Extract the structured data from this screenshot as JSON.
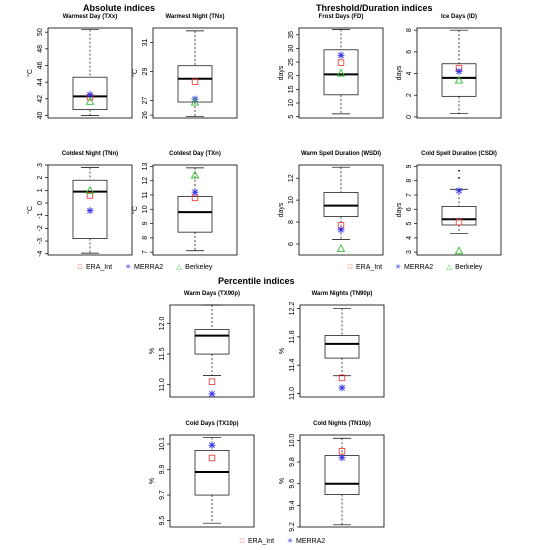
{
  "sections": {
    "absolute": "Absolute indices",
    "threshold": "Threshold/Duration indices",
    "percentile": "Percentile indices"
  },
  "legends": {
    "top": [
      {
        "label": "ERA_Int",
        "symbol": "□",
        "color": "#e8302a"
      },
      {
        "label": "MERRA2",
        "symbol": "✳",
        "color": "#2f2fe6"
      },
      {
        "label": "Berkeley",
        "symbol": "△",
        "color": "#2fbf2f"
      }
    ],
    "bottom": [
      {
        "label": "ERA_Int",
        "symbol": "□",
        "color": "#e8302a"
      },
      {
        "label": "MERRA2",
        "symbol": "✳",
        "color": "#2f2fe6"
      }
    ]
  },
  "colors": {
    "era": "#e8302a",
    "merra": "#2f2fe6",
    "berkeley": "#2fbf2f"
  },
  "chart_data": [
    {
      "id": "txx",
      "type": "box",
      "title": "Warmest Day (TXx)",
      "ylabel": "°C",
      "ylim": [
        39.7,
        50.5
      ],
      "ticks": [
        40,
        42,
        44,
        46,
        48,
        50
      ],
      "box": {
        "min": 40.0,
        "q1": 40.7,
        "median": 42.3,
        "q3": 44.6,
        "max": 50.3
      },
      "outliers": [],
      "era": 42.2,
      "merra": 42.5,
      "berkeley": 41.7
    },
    {
      "id": "tnx",
      "type": "box",
      "title": "Warmest Night (TNx)",
      "ylabel": "°C",
      "ylim": [
        25.8,
        32.0
      ],
      "ticks": [
        26,
        27,
        29,
        31
      ],
      "box": {
        "min": 25.9,
        "q1": 26.9,
        "median": 28.5,
        "q3": 29.4,
        "max": 31.8
      },
      "outliers": [],
      "era": 28.3,
      "merra": 27.1,
      "berkeley": 26.9
    },
    {
      "id": "fd",
      "type": "box",
      "title": "Frost Days (FD)",
      "ylabel": "days",
      "ylim": [
        4.5,
        37.5
      ],
      "ticks": [
        5,
        10,
        15,
        20,
        25,
        30,
        35
      ],
      "box": {
        "min": 6.0,
        "q1": 13.0,
        "median": 20.5,
        "q3": 29.5,
        "max": 37.0
      },
      "outliers": [],
      "era": 24.8,
      "merra": 27.5,
      "berkeley": 21.0
    },
    {
      "id": "id",
      "type": "box",
      "title": "Ice Days (ID)",
      "ylabel": "days",
      "ylim": [
        -0.1,
        8.2
      ],
      "ticks": [
        0,
        2,
        4,
        6,
        8
      ],
      "box": {
        "min": 0.3,
        "q1": 1.9,
        "median": 3.6,
        "q3": 4.9,
        "max": 8.0
      },
      "outliers": [],
      "era": 4.5,
      "merra": 4.2,
      "berkeley": 3.4
    },
    {
      "id": "tnn",
      "type": "box",
      "title": "Coldest Night (TNn)",
      "ylabel": "°C",
      "ylim": [
        -4.1,
        3.0
      ],
      "ticks": [
        -4,
        -3,
        -2,
        -1,
        0,
        1,
        2,
        3
      ],
      "box": {
        "min": -3.95,
        "q1": -2.8,
        "median": 0.9,
        "q3": 1.8,
        "max": 2.8
      },
      "outliers": [],
      "era": 0.6,
      "merra": -0.6,
      "berkeley": 1.0
    },
    {
      "id": "txn",
      "type": "box",
      "title": "Coldest Day (TXn)",
      "ylabel": "°C",
      "ylim": [
        6.8,
        13.1
      ],
      "ticks": [
        7,
        8,
        9,
        10,
        11,
        12,
        13
      ],
      "box": {
        "min": 7.1,
        "q1": 8.4,
        "median": 9.8,
        "q3": 10.9,
        "max": 12.9
      },
      "outliers": [],
      "era": 10.8,
      "merra": 11.2,
      "berkeley": 12.4
    },
    {
      "id": "wsdi",
      "type": "box",
      "title": "Warm Spell Duration (WSDI)",
      "ylabel": "days",
      "ylim": [
        5.0,
        13.2
      ],
      "ticks": [
        6,
        8,
        10,
        12
      ],
      "box": {
        "min": 6.4,
        "q1": 8.5,
        "median": 9.5,
        "q3": 10.7,
        "max": 13.0
      },
      "outliers": [],
      "era": 7.7,
      "merra": 7.3,
      "berkeley": 5.6
    },
    {
      "id": "csdi",
      "type": "box",
      "title": "Cold Spell Duration (CSDI)",
      "ylabel": "days",
      "ylim": [
        2.8,
        9.1
      ],
      "ticks": [
        3,
        4,
        5,
        6,
        7,
        8,
        9
      ],
      "box": {
        "min": 4.3,
        "q1": 4.9,
        "median": 5.3,
        "q3": 6.2,
        "max": 7.4
      },
      "outliers": [
        8.2,
        8.7
      ],
      "era": 5.1,
      "merra": 7.3,
      "berkeley": 3.1
    },
    {
      "id": "tx90p",
      "type": "box",
      "title": "Warm Days (TX90p)",
      "ylabel": "%",
      "ylim": [
        10.8,
        12.3
      ],
      "ticks": [
        11.0,
        11.5,
        12.0
      ],
      "box": {
        "min": 11.15,
        "q1": 11.5,
        "median": 11.8,
        "q3": 11.9,
        "max": 12.3
      },
      "outliers": [],
      "era": 11.05,
      "merra": 10.85,
      "berkeley": null
    },
    {
      "id": "tn90p",
      "type": "box",
      "title": "Warm Nights (TN90p)",
      "ylabel": "%",
      "ylim": [
        10.95,
        12.25
      ],
      "ticks": [
        11.0,
        11.4,
        11.8,
        12.2
      ],
      "box": {
        "min": 11.25,
        "q1": 11.5,
        "median": 11.7,
        "q3": 11.82,
        "max": 12.2
      },
      "outliers": [],
      "era": 11.22,
      "merra": 11.08,
      "berkeley": null
    },
    {
      "id": "tx10p",
      "type": "box",
      "title": "Cold Days (TX10p)",
      "ylabel": "%",
      "ylim": [
        9.45,
        10.17
      ],
      "ticks": [
        9.5,
        9.7,
        9.9,
        10.1
      ],
      "box": {
        "min": 9.48,
        "q1": 9.7,
        "median": 9.88,
        "q3": 10.05,
        "max": 10.15
      },
      "outliers": [],
      "era": 9.99,
      "merra": 10.09,
      "berkeley": null
    },
    {
      "id": "tn10p",
      "type": "box",
      "title": "Cold Nights (TN10p)",
      "ylabel": "%",
      "ylim": [
        9.2,
        10.05
      ],
      "ticks": [
        9.2,
        9.4,
        9.6,
        9.8,
        10.0
      ],
      "box": {
        "min": 9.22,
        "q1": 9.5,
        "median": 9.6,
        "q3": 9.86,
        "max": 10.02
      },
      "outliers": [],
      "era": 9.9,
      "merra": 9.84,
      "berkeley": null
    }
  ]
}
